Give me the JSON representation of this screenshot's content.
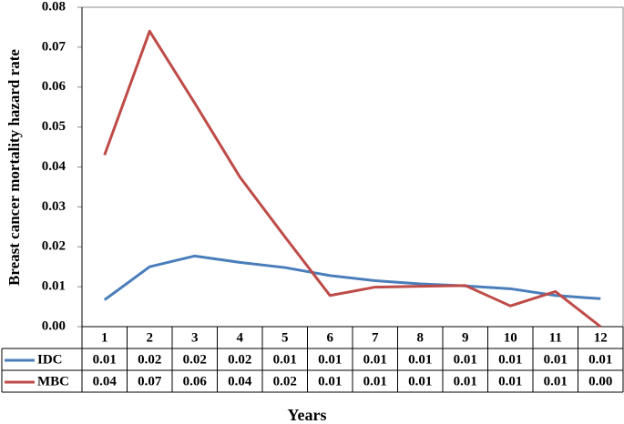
{
  "chart_data": {
    "type": "line",
    "x_label": "Years",
    "y_label": "Breast cancer mortality hazard rate",
    "categories": [
      "1",
      "2",
      "3",
      "4",
      "5",
      "6",
      "7",
      "8",
      "9",
      "10",
      "11",
      "12"
    ],
    "series": [
      {
        "name": "IDC",
        "color": "#4a7ebb",
        "values": [
          0.0067,
          0.015,
          0.0177,
          0.0161,
          0.0148,
          0.0128,
          0.0115,
          0.0107,
          0.0102,
          0.0095,
          0.0078,
          0.007
        ],
        "value_labels": [
          "0.01",
          "0.02",
          "0.02",
          "0.02",
          "0.01",
          "0.01",
          "0.01",
          "0.01",
          "0.01",
          "0.01",
          "0.01",
          "0.01"
        ]
      },
      {
        "name": "MBC",
        "color": "#be4b48",
        "values": [
          0.043,
          0.074,
          0.056,
          0.0375,
          0.0225,
          0.0078,
          0.0099,
          0.0101,
          0.0103,
          0.0052,
          0.0088,
          0
        ],
        "value_labels": [
          "0.04",
          "0.07",
          "0.06",
          "0.04",
          "0.02",
          "0.01",
          "0.01",
          "0.01",
          "0.01",
          "0.01",
          "0.01",
          "0.00"
        ]
      }
    ],
    "ylim": [
      0,
      0.08
    ],
    "yticks": [
      {
        "value": 0,
        "label": "0.00"
      },
      0.01,
      0.02,
      0.03,
      0.04,
      0.05,
      0.06,
      0.07,
      0.08
    ],
    "grid": false
  }
}
